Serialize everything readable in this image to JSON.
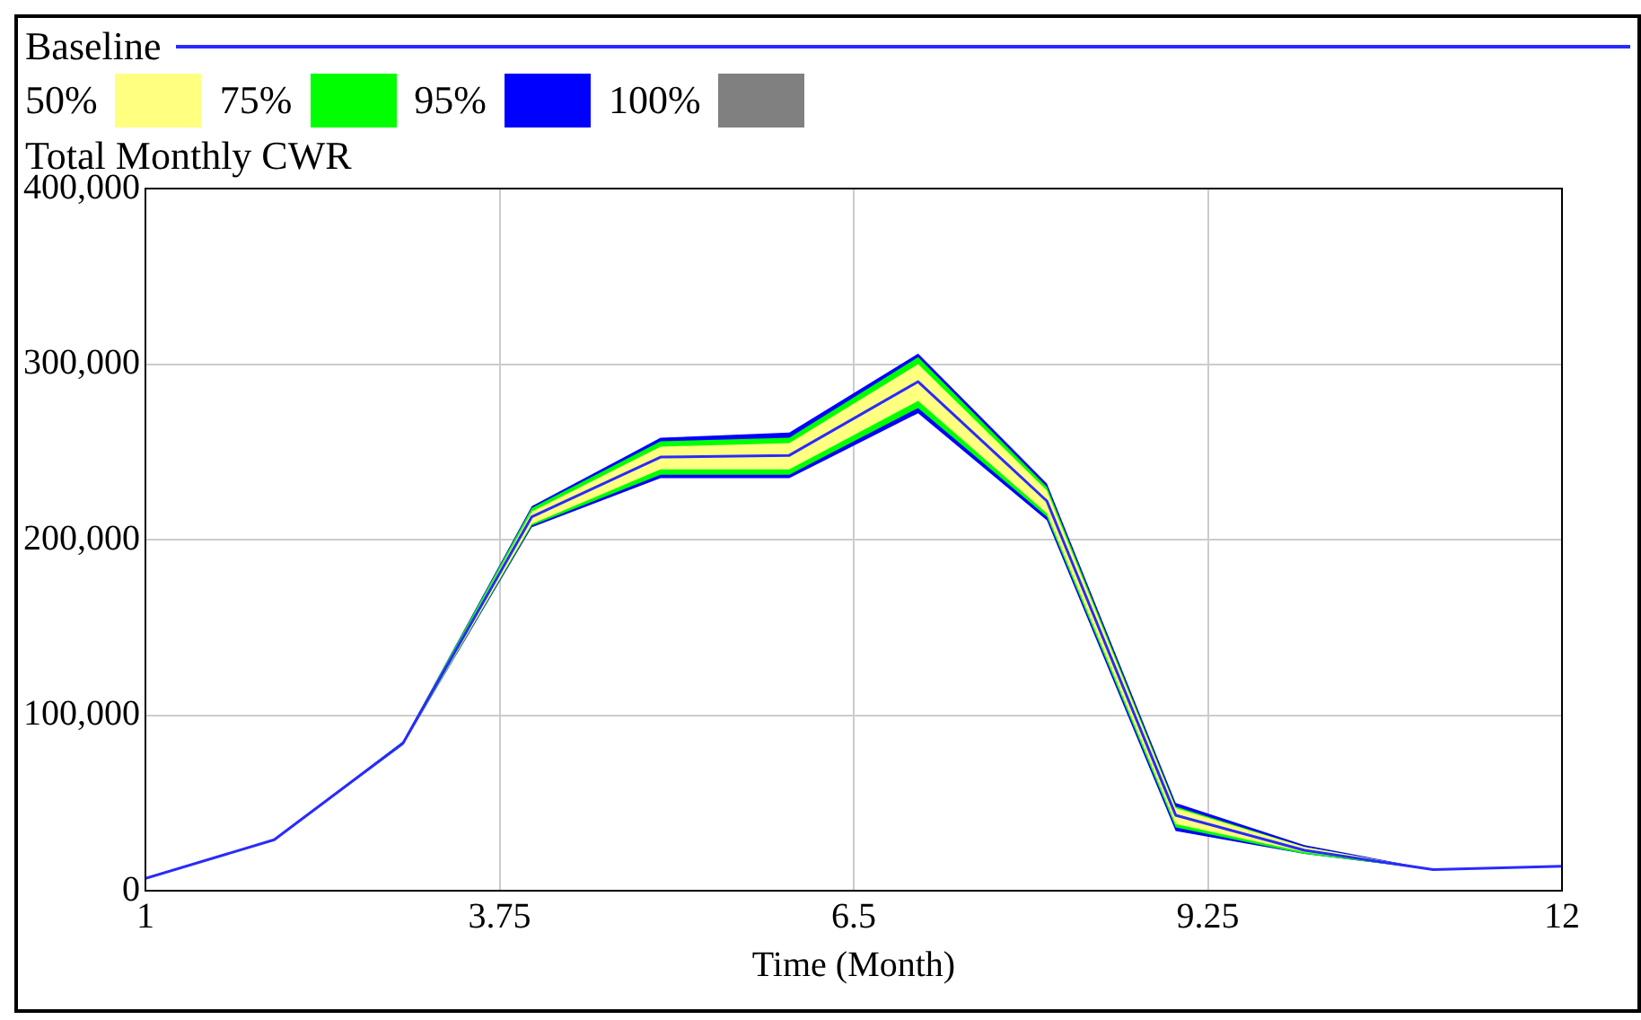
{
  "chart_data": {
    "type": "line",
    "title": "Total Monthly CWR",
    "xlabel": "Time (Month)",
    "x": [
      1,
      2,
      3,
      4,
      5,
      6,
      7,
      8,
      9,
      10,
      11,
      12
    ],
    "xlim": [
      1,
      12
    ],
    "xticks": [
      1,
      3.75,
      6.5,
      9.25,
      12
    ],
    "ylim": [
      0,
      400000
    ],
    "yticks": [
      0,
      {
        "value": 100000,
        "label": "100,000"
      },
      {
        "value": 200000,
        "label": "200,000"
      },
      {
        "value": 300000,
        "label": "300,000"
      },
      {
        "value": 400000,
        "label": "400,000"
      }
    ],
    "grid": true,
    "legend": "top",
    "series": [
      {
        "name": "Baseline",
        "type": "line",
        "color": "#2a2aff",
        "values": [
          7000,
          29000,
          84000,
          213000,
          247000,
          248000,
          290000,
          222000,
          43000,
          23000,
          12000,
          14000
        ]
      },
      {
        "name": "50%",
        "type": "line",
        "color": "#ffff80",
        "values": [
          null,
          null,
          null,
          null,
          null,
          null,
          null,
          null,
          null,
          null,
          null,
          null
        ],
        "lower": [
          7000,
          29000,
          83000,
          209000,
          240000,
          240000,
          279000,
          215000,
          38000,
          22000,
          12000,
          14000
        ],
        "upper": [
          7000,
          29000,
          84000,
          216000,
          253000,
          255000,
          300000,
          228000,
          47000,
          25000,
          12000,
          14000
        ]
      },
      {
        "name": "75%",
        "type": "line",
        "color": "#00ff00",
        "values": [
          null,
          null,
          null,
          null,
          null,
          null,
          null,
          null,
          null,
          null,
          null,
          null
        ],
        "lower": [
          7000,
          29000,
          83000,
          208000,
          237000,
          237000,
          275000,
          213000,
          36000,
          21000,
          12000,
          14000
        ],
        "upper": [
          7000,
          29000,
          85000,
          218000,
          256000,
          258000,
          304000,
          230000,
          48000,
          25000,
          12000,
          14000
        ]
      },
      {
        "name": "95%",
        "type": "line",
        "color": "#0000ff",
        "values": [
          null,
          null,
          null,
          null,
          null,
          null,
          null,
          null,
          null,
          null,
          null,
          null
        ],
        "lower": [
          7000,
          29000,
          83000,
          207000,
          235000,
          235000,
          272000,
          211000,
          34000,
          21000,
          12000,
          14000
        ],
        "upper": [
          7000,
          29000,
          85000,
          219000,
          258000,
          261000,
          306000,
          232000,
          50000,
          26000,
          12000,
          14000
        ]
      },
      {
        "name": "100%",
        "type": "line",
        "color": "#808080",
        "values": [
          null,
          null,
          null,
          null,
          null,
          null,
          null,
          null,
          null,
          null,
          null,
          null
        ]
      }
    ]
  }
}
